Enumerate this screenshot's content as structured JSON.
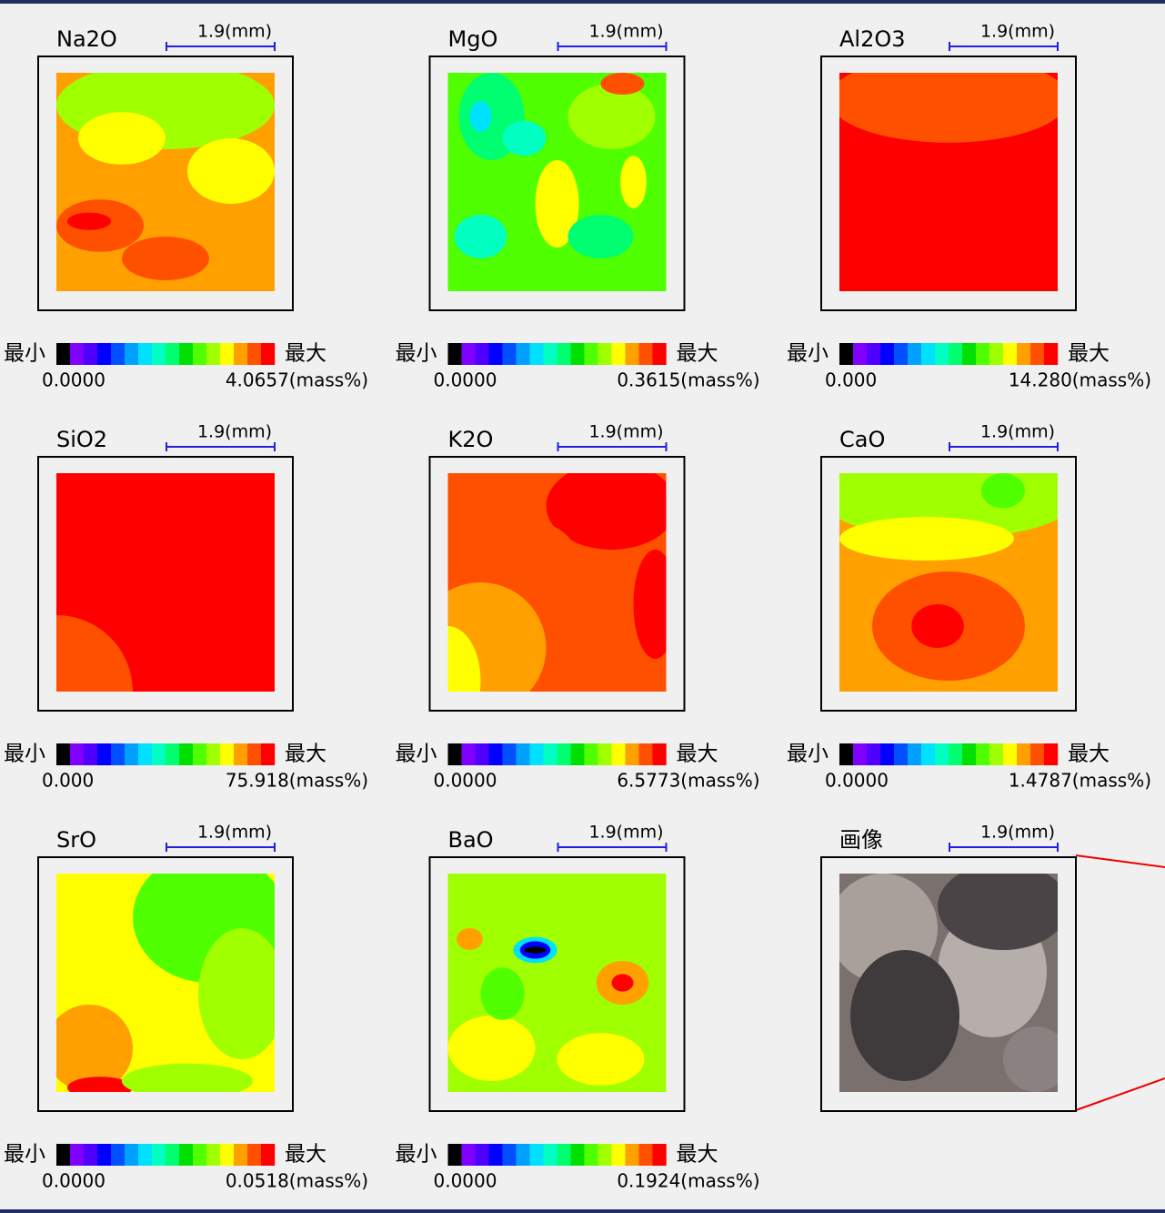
{
  "panels": [
    {
      "title": "Na2O",
      "scale": "1.9(mm)",
      "min_label": "最小",
      "max_label": "最大",
      "min": "0.0000",
      "max": "4.0657(mass%)"
    },
    {
      "title": "MgO",
      "scale": "1.9(mm)",
      "min_label": "最小",
      "max_label": "最大",
      "min": "0.0000",
      "max": "0.3615(mass%)"
    },
    {
      "title": "Al2O3",
      "scale": "1.9(mm)",
      "min_label": "最小",
      "max_label": "最大",
      "min": "0.000",
      "max": "14.280(mass%)"
    },
    {
      "title": "SiO2",
      "scale": "1.9(mm)",
      "min_label": "最小",
      "max_label": "最大",
      "min": "0.000",
      "max": "75.918(mass%)"
    },
    {
      "title": "K2O",
      "scale": "1.9(mm)",
      "min_label": "最小",
      "max_label": "最大",
      "min": "0.0000",
      "max": "6.5773(mass%)"
    },
    {
      "title": "CaO",
      "scale": "1.9(mm)",
      "min_label": "最小",
      "max_label": "最大",
      "min": "0.0000",
      "max": "1.4787(mass%)"
    },
    {
      "title": "SrO",
      "scale": "1.9(mm)",
      "min_label": "最小",
      "max_label": "最大",
      "min": "0.0000",
      "max": "0.0518(mass%)"
    },
    {
      "title": "BaO",
      "scale": "1.9(mm)",
      "min_label": "最小",
      "max_label": "最大",
      "min": "0.0000",
      "max": "0.1924(mass%)"
    },
    {
      "title": "画像",
      "scale": "1.9(mm)"
    }
  ]
}
